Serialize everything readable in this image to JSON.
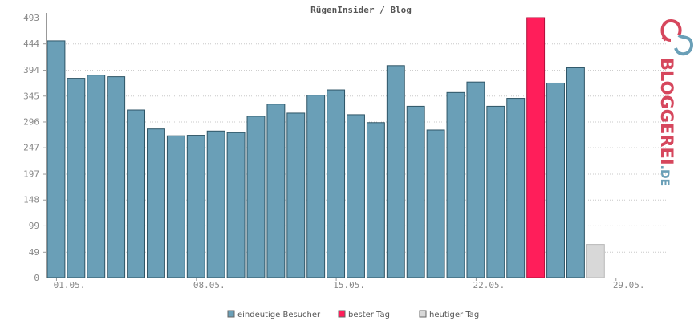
{
  "chart_data": {
    "type": "bar",
    "title": "RügenInsider / Blog",
    "ylim": [
      0,
      493
    ],
    "yticks": [
      "493",
      "444",
      "394",
      "345",
      "296",
      "247",
      "197",
      "148",
      "99",
      "49",
      "0"
    ],
    "ytick_values": [
      493,
      444,
      394,
      345,
      296,
      247,
      197,
      148,
      99,
      49,
      0
    ],
    "xtick_labels": [
      "01.05.",
      "08.05.",
      "15.05.",
      "22.05.",
      "29.05."
    ],
    "xtick_day_index": [
      0,
      7,
      14,
      21,
      28
    ],
    "n_days": 31,
    "grid": true,
    "legend_position": "bottom-center",
    "series": [
      {
        "name": "eindeutige Besucher",
        "color": "#6a9fb7",
        "days": [
          0,
          1,
          2,
          3,
          4,
          5,
          6,
          7,
          8,
          9,
          10,
          11,
          12,
          13,
          14,
          15,
          16,
          17,
          18,
          19,
          20,
          21,
          22,
          23,
          24,
          25,
          26,
          27
        ],
        "values": [
          449,
          378,
          384,
          381,
          318,
          282,
          269,
          270,
          278,
          275,
          306,
          329,
          312,
          346,
          356,
          309,
          294,
          402,
          325,
          280,
          351,
          371,
          325,
          340,
          493,
          369,
          398,
          63
        ]
      }
    ],
    "best_day_index": 24,
    "today_index": 27,
    "colors": {
      "bar": "#6a9fb7",
      "best": "#ff1e5a",
      "today": "#d8d8d8"
    }
  },
  "legend": {
    "items": [
      {
        "label": "eindeutige Besucher",
        "color": "#6a9fb7"
      },
      {
        "label": "bester Tag",
        "color": "#ff1e5a"
      },
      {
        "label": "heutiger Tag",
        "color": "#d8d8d8"
      }
    ]
  },
  "logo": {
    "text_main": "BLOGGEREI",
    "text_suffix": ".DE",
    "color_main": "#d6475d",
    "color_suffix": "#6a9fb7"
  }
}
